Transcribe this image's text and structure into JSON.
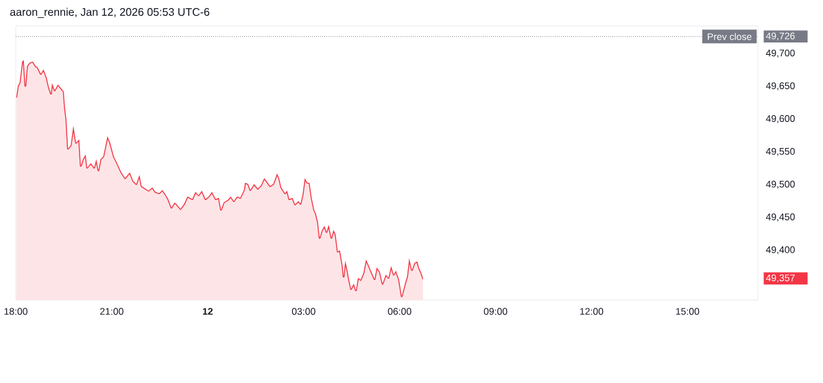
{
  "chart_data": {
    "type": "area",
    "annotations": [
      "aaron_rennie, Jan 12, 2026 05:53 UTC-6"
    ],
    "x": [
      "2026-01-11T18:01",
      "2026-01-11T18:04",
      "2026-01-11T18:07",
      "2026-01-11T18:12",
      "2026-01-11T18:15",
      "2026-01-11T18:18",
      "2026-01-11T18:21",
      "2026-01-11T18:26",
      "2026-01-11T18:32",
      "2026-01-11T18:37",
      "2026-01-11T18:41",
      "2026-01-11T18:47",
      "2026-01-11T18:52",
      "2026-01-11T18:58",
      "2026-01-11T19:02",
      "2026-01-11T19:06",
      "2026-01-11T19:08",
      "2026-01-11T19:13",
      "2026-01-11T19:19",
      "2026-01-11T19:26",
      "2026-01-11T19:30",
      "2026-01-11T19:32",
      "2026-01-11T19:35",
      "2026-01-11T19:38",
      "2026-01-11T19:43",
      "2026-01-11T19:48",
      "2026-01-11T19:53",
      "2026-01-11T19:59",
      "2026-01-11T20:02",
      "2026-01-11T20:06",
      "2026-01-11T20:11",
      "2026-01-11T20:14",
      "2026-01-11T20:21",
      "2026-01-11T20:27",
      "2026-01-11T20:31",
      "2026-01-11T20:35",
      "2026-01-11T20:39",
      "2026-01-11T20:44",
      "2026-01-11T20:52",
      "2026-01-11T20:57",
      "2026-01-11T21:04",
      "2026-01-11T21:10",
      "2026-01-11T21:18",
      "2026-01-11T21:25",
      "2026-01-11T21:34",
      "2026-01-11T21:40",
      "2026-01-11T21:46",
      "2026-01-11T21:52",
      "2026-01-11T21:56",
      "2026-01-11T22:03",
      "2026-01-11T22:09",
      "2026-01-11T22:16",
      "2026-01-11T22:22",
      "2026-01-11T22:29",
      "2026-01-11T22:35",
      "2026-01-11T22:41",
      "2026-01-11T22:46",
      "2026-01-11T22:52",
      "2026-01-11T22:58",
      "2026-01-11T23:02",
      "2026-01-11T23:09",
      "2026-01-11T23:16",
      "2026-01-11T23:22",
      "2026-01-11T23:31",
      "2026-01-11T23:37",
      "2026-01-11T23:43",
      "2026-01-11T23:49",
      "2026-01-11T23:56",
      "2026-01-12T00:02",
      "2026-01-12T00:08",
      "2026-01-12T00:15",
      "2026-01-12T00:21",
      "2026-01-12T00:25",
      "2026-01-12T00:30",
      "2026-01-12T00:38",
      "2026-01-12T00:43",
      "2026-01-12T00:49",
      "2026-01-12T00:55",
      "2026-01-12T01:01",
      "2026-01-12T01:08",
      "2026-01-12T01:10",
      "2026-01-12T01:16",
      "2026-01-12T01:20",
      "2026-01-12T01:27",
      "2026-01-12T01:34",
      "2026-01-12T01:40",
      "2026-01-12T01:46",
      "2026-01-12T01:50",
      "2026-01-12T01:57",
      "2026-01-12T02:03",
      "2026-01-12T02:10",
      "2026-01-12T02:14",
      "2026-01-12T02:18",
      "2026-01-12T02:25",
      "2026-01-12T02:29",
      "2026-01-12T02:33",
      "2026-01-12T02:39",
      "2026-01-12T02:44",
      "2026-01-12T02:50",
      "2026-01-12T02:54",
      "2026-01-12T02:58",
      "2026-01-12T03:02",
      "2026-01-12T03:07",
      "2026-01-12T03:11",
      "2026-01-12T03:15",
      "2026-01-12T03:20",
      "2026-01-12T03:23",
      "2026-01-12T03:27",
      "2026-01-12T03:30",
      "2026-01-12T03:34",
      "2026-01-12T03:39",
      "2026-01-12T03:43",
      "2026-01-12T03:47",
      "2026-01-12T03:52",
      "2026-01-12T03:56",
      "2026-01-12T04:00",
      "2026-01-12T04:04",
      "2026-01-12T04:08",
      "2026-01-12T04:13",
      "2026-01-12T04:15",
      "2026-01-12T04:18",
      "2026-01-12T04:22",
      "2026-01-12T04:25",
      "2026-01-12T04:29",
      "2026-01-12T04:34",
      "2026-01-12T04:38",
      "2026-01-12T04:42",
      "2026-01-12T04:47",
      "2026-01-12T04:52",
      "2026-01-12T04:57",
      "2026-01-12T05:02",
      "2026-01-12T05:06",
      "2026-01-12T05:13",
      "2026-01-12T05:17",
      "2026-01-12T05:23",
      "2026-01-12T05:28",
      "2026-01-12T05:34",
      "2026-01-12T05:39",
      "2026-01-12T05:44",
      "2026-01-12T05:49",
      "2026-01-12T05:53",
      "2026-01-12T05:59",
      "2026-01-12T06:04",
      "2026-01-12T06:10",
      "2026-01-12T06:14",
      "2026-01-12T06:18",
      "2026-01-12T06:23",
      "2026-01-12T06:28",
      "2026-01-12T06:33",
      "2026-01-12T06:37",
      "2026-01-12T06:41",
      "2026-01-12T06:44"
    ],
    "values": [
      49634,
      49651,
      49655,
      49688,
      49690,
      49651,
      49681,
      49686,
      49688,
      49681,
      49679,
      49669,
      49676,
      49663,
      49649,
      49639,
      49655,
      49644,
      49653,
      49646,
      49642,
      49620,
      49599,
      49555,
      49560,
      49590,
      49564,
      49569,
      49529,
      49539,
      49546,
      49526,
      49533,
      49526,
      49539,
      49522,
      49539,
      49543,
      49574,
      49564,
      49543,
      49533,
      49519,
      49510,
      49519,
      49506,
      49501,
      49515,
      49498,
      49494,
      49491,
      49496,
      49489,
      49487,
      49492,
      49485,
      49478,
      49465,
      49473,
      49470,
      49463,
      49471,
      49482,
      49478,
      49489,
      49484,
      49491,
      49478,
      49482,
      49489,
      49478,
      49480,
      49462,
      49473,
      49477,
      49482,
      49475,
      49482,
      49480,
      49492,
      49503,
      49501,
      49492,
      49501,
      49494,
      49499,
      49510,
      49506,
      49498,
      49501,
      49517,
      49510,
      49496,
      49487,
      49491,
      49478,
      49480,
      49470,
      49475,
      49471,
      49485,
      49510,
      49503,
      49503,
      49480,
      49461,
      49456,
      49442,
      49419,
      49430,
      49437,
      49428,
      49439,
      49419,
      49431,
      49424,
      49398,
      49400,
      49377,
      49360,
      49384,
      49370,
      49356,
      49341,
      49349,
      49339,
      49358,
      49355,
      49365,
      49386,
      49377,
      49369,
      49356,
      49374,
      49367,
      49349,
      49363,
      49358,
      49376,
      49363,
      49369,
      49355,
      49330,
      49349,
      49360,
      49388,
      49370,
      49381,
      49383,
      49372,
      49365,
      49357
    ],
    "color": "#f23645",
    "xlim": [
      "2026-01-11T18:00",
      "2026-01-12T17:12"
    ],
    "ylim": [
      49324,
      49742
    ],
    "xticks": [
      {
        "value": "2026-01-11T18:00",
        "label": "18:00"
      },
      {
        "value": "2026-01-11T21:00",
        "label": "21:00"
      },
      {
        "value": "2026-01-12T00:00",
        "label": "**12**"
      },
      {
        "value": "2026-01-12T03:00",
        "label": "03:00"
      },
      {
        "value": "2026-01-12T06:00",
        "label": "06:00"
      },
      {
        "value": "2026-01-12T09:00",
        "label": "09:00"
      },
      {
        "value": "2026-01-12T12:00",
        "label": "12:00"
      },
      {
        "value": "2026-01-12T15:00",
        "label": "15:00"
      }
    ],
    "yticks": [
      {
        "value": 49357,
        "label": "49,357"
      },
      {
        "value": 49400,
        "label": "49,400"
      },
      {
        "value": 49450,
        "label": "49,450"
      },
      {
        "value": 49500,
        "label": "49,500"
      },
      {
        "value": 49550,
        "label": "49,550"
      },
      {
        "value": 49600,
        "label": "49,600"
      },
      {
        "value": 49650,
        "label": "49,650"
      },
      {
        "value": 49700,
        "label": "49,700"
      },
      {
        "value": 49726,
        "label": "49,726"
      }
    ],
    "ref_lines": [
      {
        "axis": "y",
        "value": 49726,
        "label": "Prev close",
        "color": "#787b86",
        "line_style": "dotted"
      }
    ]
  }
}
